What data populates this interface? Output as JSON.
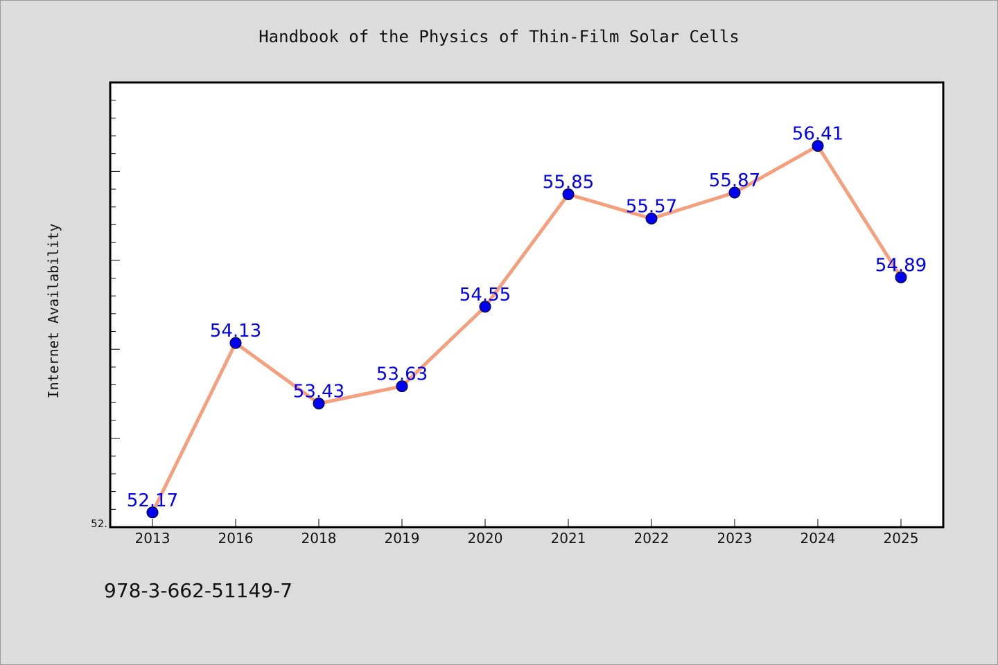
{
  "footer_text": "978-3-662-51149-7",
  "chart_data": {
    "type": "line",
    "title": "Handbook of the Physics of Thin-Film Solar Cells",
    "xlabel": "",
    "ylabel": "Internet Availability",
    "categories": [
      "2013",
      "2016",
      "2018",
      "2019",
      "2020",
      "2021",
      "2022",
      "2023",
      "2024",
      "2025"
    ],
    "series": [
      {
        "values": [
          52.17,
          54.13,
          53.43,
          53.63,
          54.55,
          55.85,
          55.57,
          55.87,
          56.41,
          54.89
        ],
        "labels": [
          "52.17",
          "54.13",
          "53.43",
          "53.63",
          "54.55",
          "55.85",
          "55.57",
          "55.87",
          "56.41",
          "54.89"
        ]
      }
    ],
    "ylim": [
      52.0,
      57.0
    ],
    "y_tick_labels": [
      "52."
    ],
    "grid": false,
    "legend": "none",
    "colors": {
      "line": "#f4a07e",
      "marker": "#0000ee",
      "data_label": "#0000ee",
      "plot_background": "#ffffff",
      "page_background": "#dcdcdc"
    }
  }
}
